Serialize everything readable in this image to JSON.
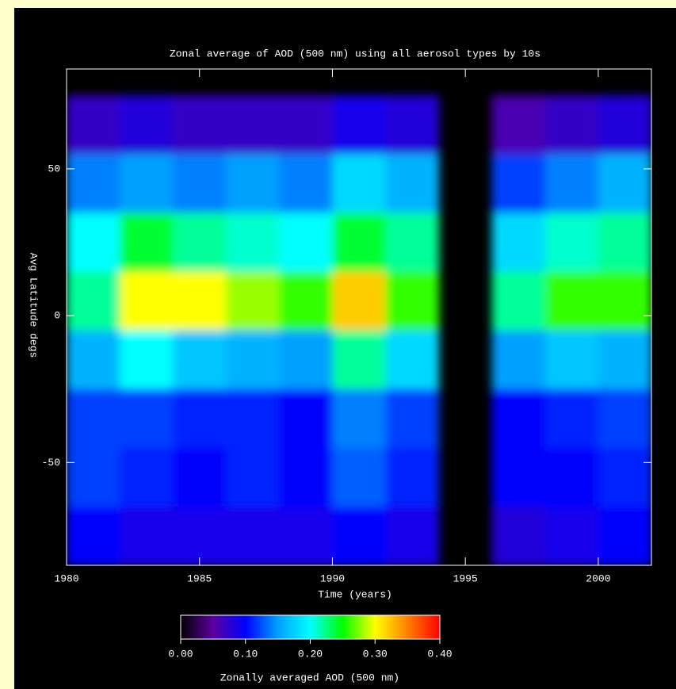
{
  "chart_data": {
    "type": "heatmap",
    "title": "Zonal average of AOD (500 nm) using all aerosol types by 10s",
    "xlabel": "Time (years)",
    "ylabel": "Avg Latitude degs",
    "xlim": [
      1980,
      2002
    ],
    "ylim": [
      -85,
      84
    ],
    "xticks": [
      1980,
      1985,
      1990,
      1995,
      2000
    ],
    "yticks": [
      -50,
      0,
      50
    ],
    "x": [
      1981,
      1983,
      1985,
      1987,
      1989,
      1991,
      1993,
      1995,
      1997,
      1999,
      2001
    ],
    "y": [
      65,
      45,
      25,
      5,
      -15,
      -35,
      -55,
      -75
    ],
    "values": [
      [
        0.07,
        0.08,
        0.07,
        0.07,
        0.07,
        0.09,
        0.08,
        null,
        0.06,
        0.07,
        0.08
      ],
      [
        0.14,
        0.15,
        0.14,
        0.15,
        0.14,
        0.18,
        0.16,
        null,
        0.12,
        0.14,
        0.16
      ],
      [
        0.2,
        0.24,
        0.22,
        0.21,
        0.2,
        0.24,
        0.22,
        null,
        0.18,
        0.21,
        0.22
      ],
      [
        0.22,
        0.3,
        0.3,
        0.28,
        0.26,
        0.32,
        0.26,
        null,
        0.22,
        0.26,
        0.26
      ],
      [
        0.16,
        0.2,
        0.17,
        0.16,
        0.15,
        0.22,
        0.18,
        null,
        0.15,
        0.17,
        0.16
      ],
      [
        0.12,
        0.12,
        0.11,
        0.11,
        0.1,
        0.14,
        0.12,
        null,
        0.1,
        0.11,
        0.12
      ],
      [
        0.12,
        0.11,
        0.1,
        0.11,
        0.1,
        0.13,
        0.11,
        null,
        0.1,
        0.1,
        0.11
      ],
      [
        0.1,
        0.09,
        0.09,
        0.09,
        0.09,
        0.1,
        0.09,
        null,
        0.08,
        0.09,
        0.1
      ]
    ],
    "colorbar": {
      "label": "Zonally averaged AOD (500 nm)",
      "range": [
        0,
        0.4
      ],
      "colors": [
        "#000000",
        "#5a00a0",
        "#0000ff",
        "#00a0ff",
        "#00ffff",
        "#00ff00",
        "#ffff00",
        "#ff8000",
        "#ff0000"
      ],
      "ticks": [
        {
          "value": 0,
          "label": "0.00"
        },
        {
          "value": 0.1,
          "label": "0.10"
        },
        {
          "value": 0.2,
          "label": "0.20"
        },
        {
          "value": 0.3,
          "label": "0.30"
        },
        {
          "value": 0.4,
          "label": "0.40"
        }
      ]
    }
  }
}
